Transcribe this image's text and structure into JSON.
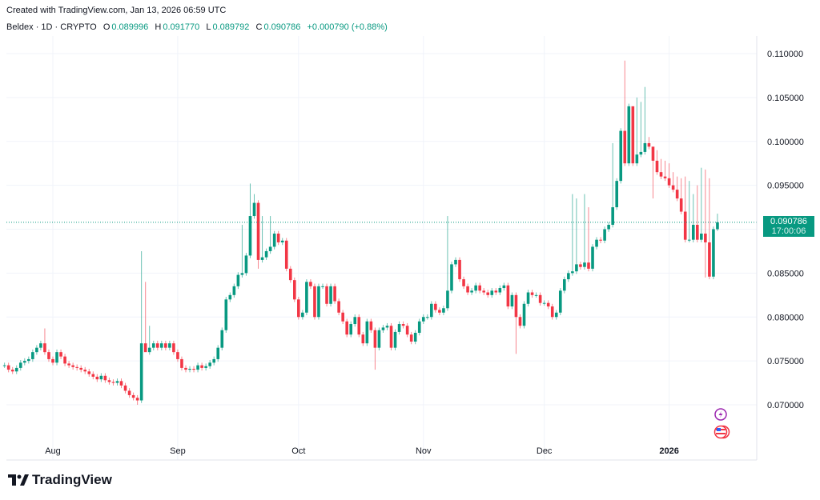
{
  "header": {
    "created": "Created with TradingView.com, Jan 13, 2026 06:59 UTC",
    "symbol": "Beldex · 1D · CRYPTO",
    "o_label": "O",
    "o": "0.089996",
    "h_label": "H",
    "h": "0.091770",
    "l_label": "L",
    "l": "0.089792",
    "c_label": "C",
    "c": "0.090786",
    "change": "+0.000790 (+0.88%)"
  },
  "price_tag": {
    "price": "0.090786",
    "countdown": "17:00:06"
  },
  "logo": "TradingView",
  "colors": {
    "up": "#089981",
    "down": "#f23645",
    "grid": "#f0f3fa"
  },
  "icons": [
    "lightning-event-icon",
    "us-flag-event-icon"
  ],
  "chart_data": {
    "type": "candlestick",
    "title": "Beldex · 1D · CRYPTO",
    "start_date": "2025-07-20",
    "first_open": 0.0745,
    "ylim": [
      0.0665,
      0.1125
    ],
    "y_ticks": [
      "0.110000",
      "0.105000",
      "0.100000",
      "0.095000",
      "0.090000",
      "0.085000",
      "0.080000",
      "0.075000",
      "0.070000"
    ],
    "y_tick_values": [
      0.11,
      0.105,
      0.1,
      0.095,
      0.09,
      0.085,
      0.08,
      0.075,
      0.07
    ],
    "x_ticks": [
      {
        "label": "Aug",
        "day": 12
      },
      {
        "label": "Sep",
        "day": 43
      },
      {
        "label": "Oct",
        "day": 73
      },
      {
        "label": "Nov",
        "day": 104
      },
      {
        "label": "Dec",
        "day": 134
      },
      {
        "label": "2026",
        "day": 165
      }
    ],
    "last_price": 0.090786,
    "close": [
      0.0745,
      0.074,
      0.0738,
      0.0742,
      0.0748,
      0.075,
      0.0752,
      0.076,
      0.0765,
      0.077,
      0.076,
      0.0752,
      0.0748,
      0.076,
      0.0755,
      0.0747,
      0.0745,
      0.0743,
      0.0742,
      0.074,
      0.0738,
      0.0735,
      0.0732,
      0.0729,
      0.0733,
      0.0728,
      0.0726,
      0.0725,
      0.0727,
      0.0722,
      0.0716,
      0.0711,
      0.0708,
      0.0705,
      0.077,
      0.076,
      0.0765,
      0.077,
      0.0765,
      0.077,
      0.0765,
      0.077,
      0.076,
      0.0752,
      0.0742,
      0.074,
      0.0741,
      0.074,
      0.0745,
      0.0742,
      0.0744,
      0.0748,
      0.0752,
      0.0765,
      0.0785,
      0.082,
      0.0825,
      0.0835,
      0.0848,
      0.085,
      0.087,
      0.0915,
      0.093,
      0.0865,
      0.0868,
      0.0875,
      0.088,
      0.0895,
      0.0885,
      0.0887,
      0.0855,
      0.0842,
      0.082,
      0.08,
      0.0805,
      0.084,
      0.0835,
      0.08,
      0.0835,
      0.0835,
      0.0815,
      0.0835,
      0.0818,
      0.0805,
      0.0795,
      0.078,
      0.0792,
      0.08,
      0.078,
      0.077,
      0.0795,
      0.0785,
      0.0765,
      0.0785,
      0.0788,
      0.079,
      0.0765,
      0.0783,
      0.0792,
      0.079,
      0.078,
      0.0772,
      0.0782,
      0.0795,
      0.08,
      0.08,
      0.0815,
      0.0808,
      0.0805,
      0.081,
      0.083,
      0.086,
      0.0865,
      0.0843,
      0.0835,
      0.0828,
      0.083,
      0.0836,
      0.083,
      0.0828,
      0.0825,
      0.083,
      0.0828,
      0.0833,
      0.0836,
      0.0812,
      0.0825,
      0.08,
      0.079,
      0.0815,
      0.0828,
      0.0825,
      0.0825,
      0.0816,
      0.0816,
      0.0812,
      0.08,
      0.0805,
      0.083,
      0.0843,
      0.085,
      0.0852,
      0.086,
      0.0857,
      0.0862,
      0.0855,
      0.088,
      0.0888,
      0.0887,
      0.09,
      0.0905,
      0.0925,
      0.0955,
      0.1012,
      0.0975,
      0.104,
      0.0975,
      0.0985,
      0.0988,
      0.0998,
      0.0994,
      0.0978,
      0.0965,
      0.096,
      0.0958,
      0.095,
      0.0945,
      0.0935,
      0.092,
      0.0888,
      0.0888,
      0.0905,
      0.0888,
      0.0895,
      0.0885,
      0.0846,
      0.09,
      0.090786
    ],
    "notable_highs": {
      "10": 0.0787,
      "34": 0.0875,
      "35": 0.084,
      "36": 0.079,
      "59": 0.0905,
      "61": 0.0952,
      "62": 0.094,
      "64": 0.0915,
      "66": 0.0915,
      "110": 0.0915,
      "141": 0.094,
      "142": 0.0935,
      "144": 0.094,
      "145": 0.0925,
      "151": 0.0998,
      "154": 0.1092,
      "156": 0.104,
      "157": 0.105,
      "158": 0.1045,
      "159": 0.1062,
      "160": 0.1005,
      "161": 0.099,
      "162": 0.099,
      "163": 0.098,
      "164": 0.0978,
      "165": 0.0975,
      "166": 0.0965,
      "167": 0.096,
      "168": 0.0958,
      "169": 0.096,
      "170": 0.0955,
      "171": 0.094,
      "172": 0.095,
      "173": 0.097,
      "174": 0.0968,
      "175": 0.0958,
      "177": 0.09177
    },
    "notable_lows": {
      "33": 0.07,
      "35": 0.0762,
      "63": 0.0855,
      "92": 0.074,
      "127": 0.0758,
      "161": 0.0935,
      "174": 0.0845,
      "175": 0.0843,
      "177": 0.089792
    }
  }
}
